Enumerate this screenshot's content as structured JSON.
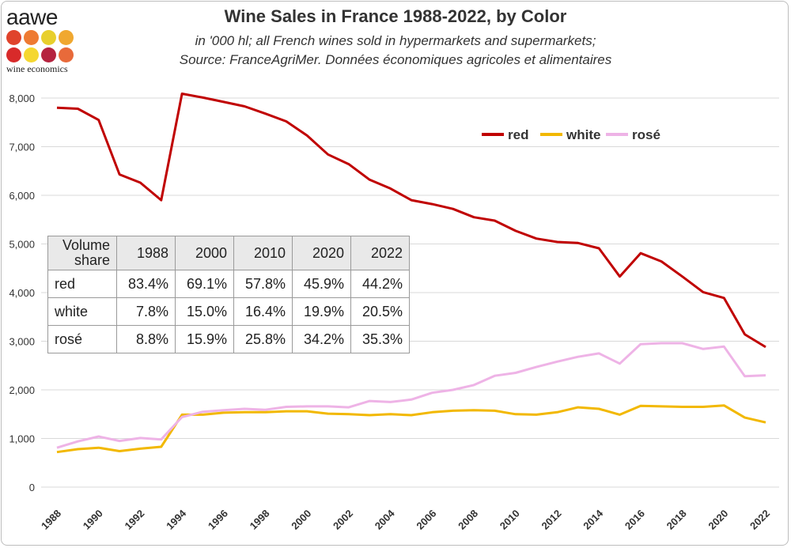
{
  "logo": {
    "wordmark": "aawe",
    "tagline": "wine economics",
    "dot_colors": [
      "#e0432b",
      "#ee7a32",
      "#e8cf2d",
      "#f0a830",
      "#d82a2a",
      "#f5d730",
      "#b5233f",
      "#e86a3a"
    ]
  },
  "colors": {
    "red": "#c00000",
    "white": "#f2b800",
    "rose": "#eeb3e6",
    "grid": "#d9d9d9"
  },
  "chart_data": {
    "type": "line",
    "title": "Wine Sales in France 1988-2022, by Color",
    "subtitle": [
      "in '000 hl; all French wines sold in hypermarkets and supermarkets;",
      "Source: FranceAgriMer. Données économiques agricoles et alimentaires"
    ],
    "x": [
      1988,
      1989,
      1990,
      1991,
      1992,
      1993,
      1994,
      1995,
      1996,
      1997,
      1998,
      1999,
      2000,
      2001,
      2002,
      2003,
      2004,
      2005,
      2006,
      2007,
      2008,
      2009,
      2010,
      2011,
      2012,
      2013,
      2014,
      2015,
      2016,
      2017,
      2018,
      2019,
      2020,
      2021,
      2022
    ],
    "xticks": [
      1988,
      1990,
      1992,
      1994,
      1996,
      1998,
      2000,
      2002,
      2004,
      2006,
      2008,
      2010,
      2012,
      2014,
      2016,
      2018,
      2020,
      2022
    ],
    "ylim": [
      0,
      8000
    ],
    "yticks": [
      0,
      1000,
      2000,
      3000,
      4000,
      5000,
      6000,
      7000,
      8000
    ],
    "ytick_labels": [
      "0",
      "1,000",
      "2,000",
      "3,000",
      "4,000",
      "5,000",
      "6,000",
      "7,000",
      "8,000"
    ],
    "grid": "horizontal",
    "legend_position": "top-right",
    "series": [
      {
        "name": "red",
        "color": "#c00000",
        "values": [
          7800,
          7780,
          7550,
          6430,
          6260,
          5900,
          8090,
          8010,
          7920,
          7830,
          7680,
          7520,
          7230,
          6840,
          6640,
          6320,
          6140,
          5900,
          5820,
          5720,
          5550,
          5480,
          5270,
          5110,
          5040,
          5020,
          4910,
          4330,
          4810,
          4640,
          4330,
          4010,
          3890,
          3140,
          2880
        ]
      },
      {
        "name": "white",
        "color": "#f2b800",
        "values": [
          720,
          780,
          810,
          740,
          790,
          830,
          1490,
          1490,
          1530,
          1540,
          1540,
          1560,
          1560,
          1510,
          1500,
          1480,
          1500,
          1480,
          1540,
          1570,
          1580,
          1570,
          1500,
          1490,
          1540,
          1640,
          1610,
          1490,
          1670,
          1660,
          1650,
          1650,
          1680,
          1430,
          1330
        ]
      },
      {
        "name": "rosé",
        "color": "#eeb3e6",
        "values": [
          810,
          940,
          1040,
          950,
          1010,
          980,
          1440,
          1550,
          1580,
          1610,
          1590,
          1650,
          1660,
          1660,
          1640,
          1770,
          1750,
          1800,
          1940,
          2000,
          2100,
          2290,
          2350,
          2470,
          2580,
          2680,
          2750,
          2540,
          2940,
          2960,
          2960,
          2840,
          2890,
          2280,
          2300
        ]
      }
    ]
  },
  "table": {
    "corner_label_line1": "Volume",
    "corner_label_line2": "share",
    "years": [
      "1988",
      "2000",
      "2010",
      "2020",
      "2022"
    ],
    "rows": [
      {
        "label": "red",
        "values": [
          "83.4%",
          "69.1%",
          "57.8%",
          "45.9%",
          "44.2%"
        ]
      },
      {
        "label": "white",
        "values": [
          "7.8%",
          "15.0%",
          "16.4%",
          "19.9%",
          "20.5%"
        ]
      },
      {
        "label": "rosé",
        "values": [
          "8.8%",
          "15.9%",
          "25.8%",
          "34.2%",
          "35.3%"
        ]
      }
    ]
  }
}
